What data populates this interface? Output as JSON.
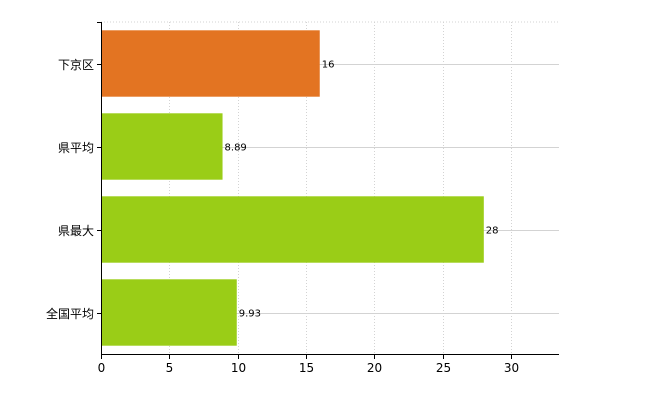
{
  "chart_data": {
    "type": "bar",
    "orientation": "horizontal",
    "categories": [
      "下京区",
      "県平均",
      "県最大",
      "全国平均"
    ],
    "values": [
      16,
      8.89,
      28,
      9.93
    ],
    "value_labels": [
      "16",
      "8.89",
      "28",
      "9.93"
    ],
    "bar_colors": [
      "#e37422",
      "#9acd17",
      "#9acd17",
      "#9acd17"
    ],
    "title": "",
    "xlabel": "",
    "ylabel": "",
    "xlim": [
      0,
      33.5
    ],
    "xticks": [
      0,
      5,
      10,
      15,
      20,
      25,
      30
    ],
    "xtick_labels": [
      "0",
      "5",
      "10",
      "15",
      "20",
      "25",
      "30"
    ],
    "grid": true,
    "legend": "none"
  }
}
